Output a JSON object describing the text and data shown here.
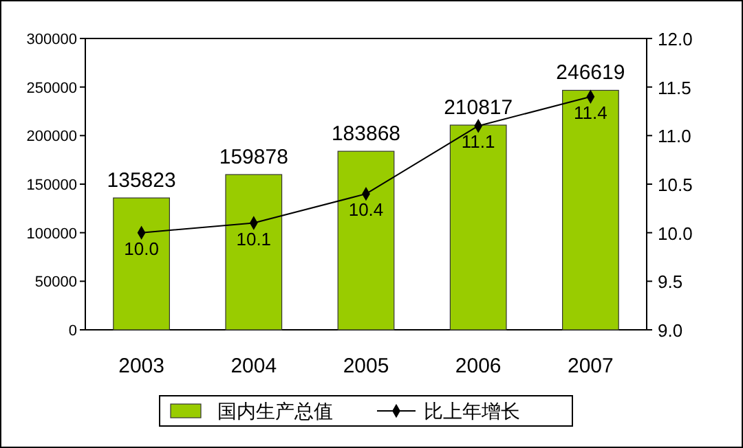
{
  "chart_data": {
    "type": "bar",
    "categories": [
      "2003",
      "2004",
      "2005",
      "2006",
      "2007"
    ],
    "series": [
      {
        "name": "国内生产总值",
        "color": "#99cc00",
        "values": [
          135823,
          159878,
          183868,
          210817,
          246619
        ]
      },
      {
        "name": "比上年增长",
        "type": "line",
        "axis": "y2",
        "color": "#000000",
        "marker": "diamond",
        "values": [
          10.0,
          10.1,
          10.4,
          11.1,
          11.4
        ],
        "value_labels": [
          "10.0",
          "10.1",
          "10.4",
          "11.1",
          "11.4"
        ]
      }
    ],
    "ylim": [
      0,
      300000
    ],
    "yticks": [
      0,
      50000,
      100000,
      150000,
      200000,
      250000,
      300000
    ],
    "y2lim": [
      9,
      12
    ],
    "y2ticks": [
      {
        "value": 9,
        "label": "9.0"
      },
      {
        "value": 9.5,
        "label": "9.5"
      },
      {
        "value": 10,
        "label": "10.0"
      },
      {
        "value": 10.5,
        "label": "10.5"
      },
      {
        "value": 11,
        "label": "11.0"
      },
      {
        "value": 11.5,
        "label": "11.5"
      },
      {
        "value": 12,
        "label": "12.0"
      }
    ],
    "data_labels": true,
    "legend": "bottom"
  }
}
